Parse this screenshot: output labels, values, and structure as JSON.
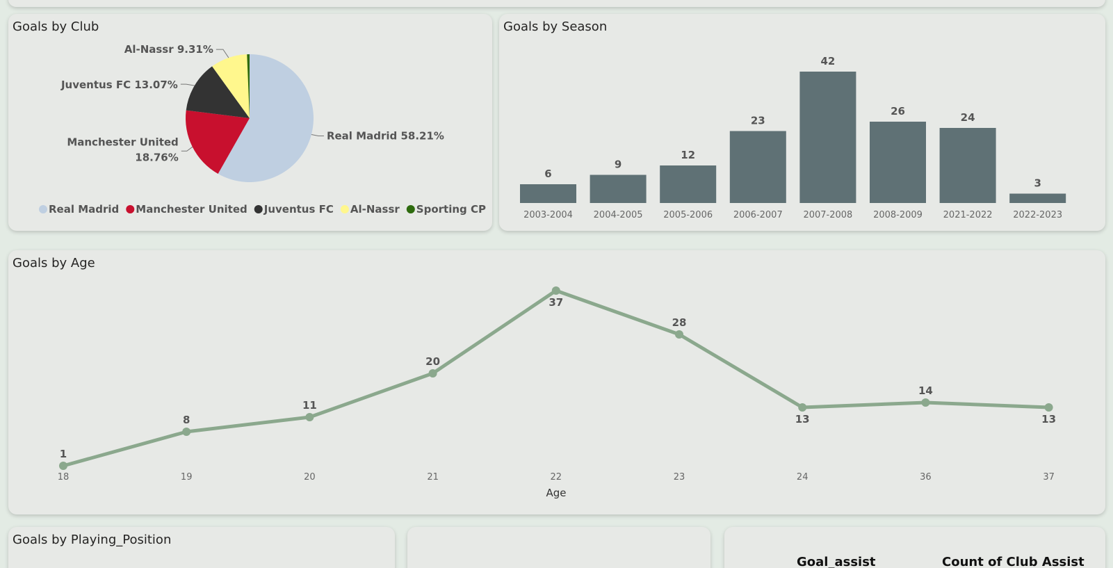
{
  "panels": {
    "club": {
      "title": "Goals by Club"
    },
    "season": {
      "title": "Goals by Season"
    },
    "age": {
      "title": "Goals by Age"
    },
    "position": {
      "title": "Goals by Playing_Position"
    },
    "table": {
      "headers": [
        "Goal_assist",
        "Count of Club Assist"
      ]
    }
  },
  "chart_data": [
    {
      "type": "pie",
      "title": "Goals by Club",
      "slices": [
        {
          "label": "Real Madrid",
          "value": 58.21,
          "color": "#bfcfe1",
          "data_label": "Real Madrid 58.21%"
        },
        {
          "label": "Manchester United",
          "value": 18.76,
          "color": "#c8102e",
          "data_label_lines": [
            "Manchester United",
            "18.76%"
          ]
        },
        {
          "label": "Juventus FC",
          "value": 13.07,
          "color": "#333333",
          "data_label": "Juventus FC 13.07%"
        },
        {
          "label": "Al-Nassr",
          "value": 9.31,
          "color": "#fff78d",
          "data_label": "Al-Nassr 9.31%"
        },
        {
          "label": "Sporting CP",
          "value": 0.65,
          "color": "#2e6b0e"
        }
      ],
      "legend": [
        "Real Madrid",
        "Manchester United",
        "Juventus FC",
        "Al-Nassr",
        "Sporting CP"
      ],
      "legend_placement": "bottom"
    },
    {
      "type": "bar",
      "title": "Goals by Season",
      "categories": [
        "2003-2004",
        "2004-2005",
        "2005-2006",
        "2006-2007",
        "2007-2008",
        "2008-2009",
        "2021-2022",
        "2022-2023"
      ],
      "values": [
        6,
        9,
        12,
        23,
        42,
        26,
        24,
        3
      ],
      "ylim": [
        0,
        42
      ],
      "color": "#5f7175"
    },
    {
      "type": "line",
      "title": "Goals by Age",
      "xlabel": "Age",
      "categories": [
        "18",
        "19",
        "20",
        "21",
        "22",
        "23",
        "24",
        "36",
        "37"
      ],
      "values": [
        1,
        8,
        11,
        20,
        37,
        28,
        13,
        14,
        13
      ],
      "label_below": [
        false,
        false,
        false,
        false,
        true,
        false,
        true,
        false,
        true
      ],
      "color": "#8ba88d"
    }
  ]
}
